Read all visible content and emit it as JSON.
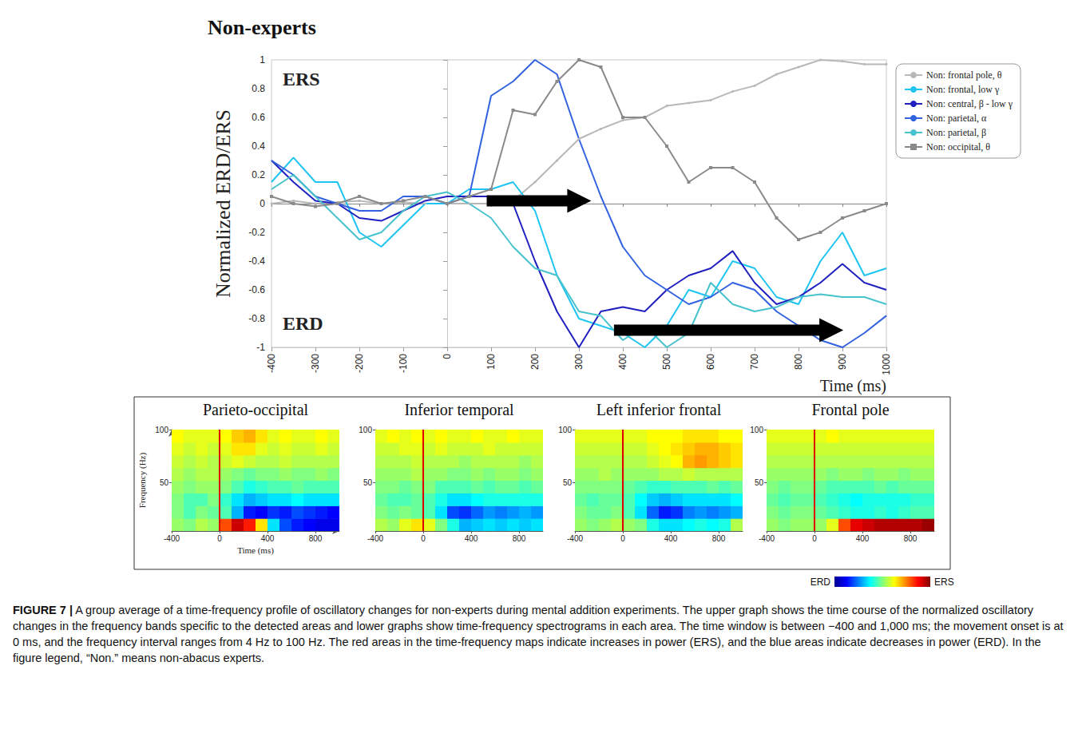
{
  "chart_data": [
    {
      "type": "line",
      "title": "Non-experts",
      "x_label": "Time (ms)",
      "y_label": "Normalized ERD/ERS",
      "annotations": [
        "ERS",
        "ERD"
      ],
      "legend": "right",
      "grid": false,
      "xlim": [
        -400,
        1000
      ],
      "xticks": [
        -400,
        -300,
        -200,
        -100,
        0,
        100,
        200,
        300,
        400,
        500,
        600,
        700,
        800,
        900,
        1000
      ],
      "ylim": [
        -1,
        1
      ],
      "yticks": [
        -1,
        -0.8,
        -0.6,
        -0.4,
        -0.2,
        0,
        0.2,
        0.4,
        0.6,
        0.8,
        1
      ],
      "x": [
        -400,
        -350,
        -300,
        -250,
        -200,
        -150,
        -100,
        -50,
        0,
        50,
        100,
        150,
        200,
        250,
        300,
        350,
        400,
        450,
        500,
        550,
        600,
        650,
        700,
        750,
        800,
        850,
        900,
        950,
        1000
      ],
      "series": [
        {
          "name": "Non: frontal pole, θ",
          "color": "#b8b8b8",
          "marker": "circle",
          "values": [
            0,
            0.02,
            0,
            0.01,
            0.02,
            0,
            0.01,
            0,
            0,
            0,
            0,
            0.02,
            0.15,
            0.3,
            0.45,
            0.52,
            0.58,
            0.6,
            0.68,
            0.7,
            0.72,
            0.78,
            0.82,
            0.9,
            0.95,
            1,
            0.99,
            0.97,
            0.97
          ]
        },
        {
          "name": "Non: frontal, low γ",
          "color": "#1ec4f2",
          "marker": "none",
          "values": [
            0.15,
            0.32,
            0.15,
            0.15,
            -0.2,
            -0.3,
            -0.15,
            0,
            0,
            0.1,
            0.1,
            0.15,
            -0.05,
            -0.5,
            -0.8,
            -0.85,
            -0.9,
            -1,
            -0.85,
            -0.6,
            -0.65,
            -0.4,
            -0.45,
            -0.65,
            -0.7,
            -0.4,
            -0.2,
            -0.5,
            -0.45
          ]
        },
        {
          "name": "Non: central, β - low γ",
          "color": "#2020c0",
          "marker": "none",
          "values": [
            0.3,
            0.15,
            0.02,
            0,
            -0.1,
            -0.12,
            -0.05,
            0.02,
            0.05,
            0.05,
            0.05,
            0,
            -0.4,
            -0.75,
            -1,
            -0.75,
            -0.72,
            -0.75,
            -0.6,
            -0.5,
            -0.45,
            -0.33,
            -0.55,
            -0.7,
            -0.65,
            -0.55,
            -0.42,
            -0.55,
            -0.6
          ]
        },
        {
          "name": "Non: parietal, α",
          "color": "#3262e0",
          "marker": "none",
          "values": [
            0.3,
            0.2,
            0.05,
            0,
            -0.05,
            -0.05,
            0.05,
            0.05,
            0,
            0.05,
            0.75,
            0.85,
            1,
            0.9,
            0.45,
            0.05,
            -0.3,
            -0.5,
            -0.6,
            -0.7,
            -0.65,
            -0.55,
            -0.6,
            -0.75,
            -0.85,
            -0.95,
            -1,
            -0.9,
            -0.78
          ]
        },
        {
          "name": "Non: parietal, β",
          "color": "#48c2cc",
          "marker": "none",
          "values": [
            0.1,
            0.2,
            0.05,
            -0.1,
            -0.25,
            -0.2,
            -0.05,
            0.05,
            0.08,
            0,
            -0.1,
            -0.3,
            -0.45,
            -0.5,
            -0.75,
            -0.78,
            -0.95,
            -0.85,
            -1,
            -0.9,
            -0.55,
            -0.7,
            -0.75,
            -0.72,
            -0.65,
            -0.63,
            -0.65,
            -0.65,
            -0.7
          ]
        },
        {
          "name": "Non: occipital, θ",
          "color": "#8a8a8a",
          "marker": "square",
          "values": [
            0.05,
            0,
            -0.02,
            0,
            0.05,
            0,
            0.02,
            0.05,
            0,
            0.05,
            0.1,
            0.65,
            0.62,
            0.85,
            1,
            0.95,
            0.6,
            0.6,
            0.4,
            0.15,
            0.25,
            0.25,
            0.15,
            -0.1,
            -0.25,
            -0.2,
            -0.1,
            -0.05,
            0
          ]
        }
      ]
    },
    {
      "type": "heatmap",
      "title": "Parieto-occipital",
      "x_label": "Time (ms)",
      "y_label": "Frequency (Hz)",
      "xlim": [
        -400,
        1000
      ],
      "xticks": [
        -400,
        0,
        400,
        800
      ],
      "ylim": [
        4,
        100
      ],
      "yticks": [
        50,
        100
      ],
      "onset": 0,
      "x_bins": [
        -400,
        -300,
        -200,
        -100,
        0,
        100,
        200,
        300,
        400,
        500,
        600,
        700,
        800,
        900,
        1000
      ],
      "y_bins": [
        4,
        16,
        28,
        40,
        52,
        64,
        76,
        88,
        100
      ],
      "cells": [
        [
          0.05,
          0,
          0.1,
          0.05,
          0.6,
          0.85,
          0.7,
          0.3,
          -0.3,
          -0.6,
          -0.7,
          -0.75,
          -0.8,
          -0.8
        ],
        [
          0,
          -0.1,
          0,
          -0.05,
          -0.1,
          -0.4,
          -0.7,
          -0.75,
          -0.65,
          -0.7,
          -0.6,
          -0.65,
          -0.7,
          -0.75
        ],
        [
          0,
          -0.1,
          -0.1,
          0,
          -0.15,
          -0.3,
          -0.4,
          -0.35,
          -0.3,
          -0.3,
          -0.25,
          -0.3,
          -0.3,
          -0.3
        ],
        [
          0.05,
          0,
          0.05,
          0.05,
          0,
          -0.1,
          -0.2,
          -0.15,
          -0.1,
          -0.1,
          -0.05,
          -0.1,
          -0.1,
          -0.1
        ],
        [
          0.1,
          0.05,
          0.1,
          0.1,
          0.05,
          0,
          -0.05,
          0,
          0,
          0.05,
          0,
          0,
          0.05,
          0
        ],
        [
          0.15,
          0.1,
          0.15,
          0.1,
          0.15,
          0.2,
          0.15,
          0.1,
          0.1,
          0.15,
          0.1,
          0.1,
          0.1,
          0.1
        ],
        [
          0.2,
          0.15,
          0.2,
          0.15,
          0.2,
          0.3,
          0.3,
          0.2,
          0.15,
          0.2,
          0.15,
          0.15,
          0.2,
          0.15
        ],
        [
          0.25,
          0.2,
          0.2,
          0.2,
          0.25,
          0.35,
          0.4,
          0.3,
          0.2,
          0.25,
          0.2,
          0.2,
          0.25,
          0.2
        ]
      ]
    },
    {
      "type": "heatmap",
      "title": "Inferior temporal",
      "xlim": [
        -400,
        1000
      ],
      "xticks": [
        -400,
        0,
        400,
        800
      ],
      "ylim": [
        4,
        100
      ],
      "yticks": [
        50,
        100
      ],
      "onset": 0,
      "x_bins": [
        -400,
        -300,
        -200,
        -100,
        0,
        100,
        200,
        300,
        400,
        500,
        600,
        700,
        800,
        900,
        1000
      ],
      "y_bins": [
        4,
        16,
        28,
        40,
        52,
        64,
        76,
        88,
        100
      ],
      "cells": [
        [
          0.1,
          0.05,
          0.2,
          0.3,
          0.2,
          0,
          -0.2,
          -0.4,
          -0.35,
          -0.3,
          -0.35,
          -0.3,
          -0.35,
          -0.3
        ],
        [
          0,
          -0.05,
          0,
          -0.05,
          -0.1,
          -0.3,
          -0.6,
          -0.65,
          -0.55,
          -0.45,
          -0.5,
          -0.45,
          -0.4,
          -0.45
        ],
        [
          -0.05,
          -0.1,
          -0.1,
          -0.05,
          -0.1,
          -0.2,
          -0.3,
          -0.3,
          -0.25,
          -0.2,
          -0.2,
          -0.2,
          -0.2,
          -0.2
        ],
        [
          0,
          0,
          -0.05,
          0,
          0,
          -0.1,
          -0.1,
          -0.1,
          -0.05,
          -0.1,
          -0.05,
          -0.05,
          -0.1,
          -0.05
        ],
        [
          0.05,
          0.05,
          0.05,
          0.1,
          0.05,
          0.05,
          0,
          0,
          0.05,
          0,
          0.05,
          0.05,
          0,
          0.05
        ],
        [
          0.1,
          0.1,
          0.1,
          0.15,
          0.1,
          0.1,
          0.1,
          0.05,
          0.1,
          0.1,
          0.1,
          0.1,
          0.05,
          0.1
        ],
        [
          0.15,
          0.15,
          0.2,
          0.2,
          0.15,
          0.2,
          0.15,
          0.15,
          0.15,
          0.2,
          0.15,
          0.15,
          0.15,
          0.15
        ],
        [
          0.2,
          0.25,
          0.2,
          0.25,
          0.2,
          0.25,
          0.2,
          0.2,
          0.25,
          0.2,
          0.2,
          0.25,
          0.2,
          0.2
        ]
      ]
    },
    {
      "type": "heatmap",
      "title": "Left inferior frontal",
      "xlim": [
        -400,
        1000
      ],
      "xticks": [
        -400,
        0,
        400,
        800
      ],
      "ylim": [
        4,
        100
      ],
      "yticks": [
        50,
        100
      ],
      "onset": 0,
      "x_bins": [
        -400,
        -300,
        -200,
        -100,
        0,
        100,
        200,
        300,
        400,
        500,
        600,
        700,
        800,
        900,
        1000
      ],
      "y_bins": [
        4,
        16,
        28,
        40,
        52,
        64,
        76,
        88,
        100
      ],
      "cells": [
        [
          0.05,
          0,
          0.05,
          0.1,
          0.05,
          0,
          -0.2,
          -0.3,
          -0.3,
          -0.25,
          -0.2,
          -0.25,
          -0.2,
          0.1
        ],
        [
          0,
          -0.05,
          -0.05,
          0,
          -0.1,
          -0.3,
          -0.55,
          -0.7,
          -0.65,
          -0.5,
          -0.45,
          -0.5,
          -0.45,
          -0.4
        ],
        [
          -0.05,
          -0.1,
          -0.05,
          -0.05,
          -0.1,
          -0.25,
          -0.35,
          -0.4,
          -0.35,
          -0.3,
          -0.3,
          -0.3,
          -0.3,
          -0.25
        ],
        [
          0,
          0,
          0,
          0,
          -0.05,
          -0.1,
          -0.15,
          -0.15,
          -0.1,
          -0.1,
          -0.1,
          -0.05,
          -0.1,
          -0.05
        ],
        [
          0.05,
          0.05,
          0.1,
          0.05,
          0.05,
          0.05,
          0.05,
          0.1,
          0.1,
          0.15,
          0.1,
          0.1,
          0.1,
          0.1
        ],
        [
          0.1,
          0.1,
          0.1,
          0.1,
          0.1,
          0.1,
          0.15,
          0.2,
          0.25,
          0.4,
          0.45,
          0.4,
          0.35,
          0.3
        ],
        [
          0.15,
          0.15,
          0.15,
          0.15,
          0.15,
          0.15,
          0.2,
          0.25,
          0.3,
          0.35,
          0.4,
          0.4,
          0.35,
          0.3
        ],
        [
          0.2,
          0.2,
          0.2,
          0.2,
          0.2,
          0.2,
          0.25,
          0.25,
          0.25,
          0.3,
          0.3,
          0.3,
          0.25,
          0.25
        ]
      ]
    },
    {
      "type": "heatmap",
      "title": "Frontal pole",
      "xlim": [
        -400,
        1000
      ],
      "xticks": [
        -400,
        0,
        400,
        800
      ],
      "ylim": [
        4,
        100
      ],
      "yticks": [
        50,
        100
      ],
      "onset": 0,
      "x_bins": [
        -400,
        -300,
        -200,
        -100,
        0,
        100,
        200,
        300,
        400,
        500,
        600,
        700,
        800,
        900,
        1000
      ],
      "y_bins": [
        4,
        16,
        28,
        40,
        52,
        64,
        76,
        88,
        100
      ],
      "cells": [
        [
          0.05,
          0,
          0.05,
          0.05,
          0.05,
          0.2,
          0.6,
          0.8,
          0.85,
          0.9,
          0.9,
          0.9,
          0.9,
          0.95
        ],
        [
          0,
          -0.05,
          0,
          0,
          -0.05,
          -0.1,
          -0.15,
          -0.2,
          -0.2,
          -0.15,
          -0.2,
          -0.15,
          -0.1,
          -0.1
        ],
        [
          -0.05,
          -0.1,
          -0.05,
          -0.05,
          -0.1,
          -0.15,
          -0.2,
          -0.25,
          -0.2,
          -0.2,
          -0.2,
          -0.2,
          -0.15,
          -0.15
        ],
        [
          0,
          -0.05,
          0,
          0,
          -0.05,
          -0.1,
          -0.1,
          -0.1,
          -0.1,
          -0.05,
          -0.1,
          -0.05,
          -0.05,
          -0.05
        ],
        [
          0.05,
          0.05,
          0.05,
          0.05,
          0.05,
          0,
          0.05,
          0.05,
          0,
          0.05,
          0.05,
          0,
          0.05,
          0.05
        ],
        [
          0.1,
          0.1,
          0.1,
          0.1,
          0.1,
          0.1,
          0.1,
          0.1,
          0.1,
          0.1,
          0.1,
          0.1,
          0.1,
          0.1
        ],
        [
          0.15,
          0.15,
          0.15,
          0.15,
          0.15,
          0.15,
          0.15,
          0.15,
          0.15,
          0.15,
          0.15,
          0.15,
          0.15,
          0.15
        ],
        [
          0.2,
          0.2,
          0.2,
          0.2,
          0.2,
          0.25,
          0.2,
          0.2,
          0.2,
          0.2,
          0.2,
          0.2,
          0.2,
          0.2
        ]
      ]
    }
  ],
  "colorbar": {
    "range": [
      -1,
      1
    ],
    "labels": [
      "ERD",
      "ERS"
    ]
  },
  "caption": {
    "label": "FIGURE 7 |",
    "text": "A group average of a time-frequency profile of oscillatory changes for non-experts during mental addition experiments. The upper graph shows the time course of the normalized oscillatory changes in the frequency bands specific to the detected areas and lower graphs show time-frequency spectrograms in each area. The time window is between −400 and 1,000 ms; the movement onset is at 0 ms, and the frequency interval ranges from 4 Hz to 100 Hz. The red areas in the time-frequency maps indicate increases in power (ERS), and the blue areas indicate decreases in power (ERD). In the figure legend, “Non.” means non-abacus experts."
  }
}
